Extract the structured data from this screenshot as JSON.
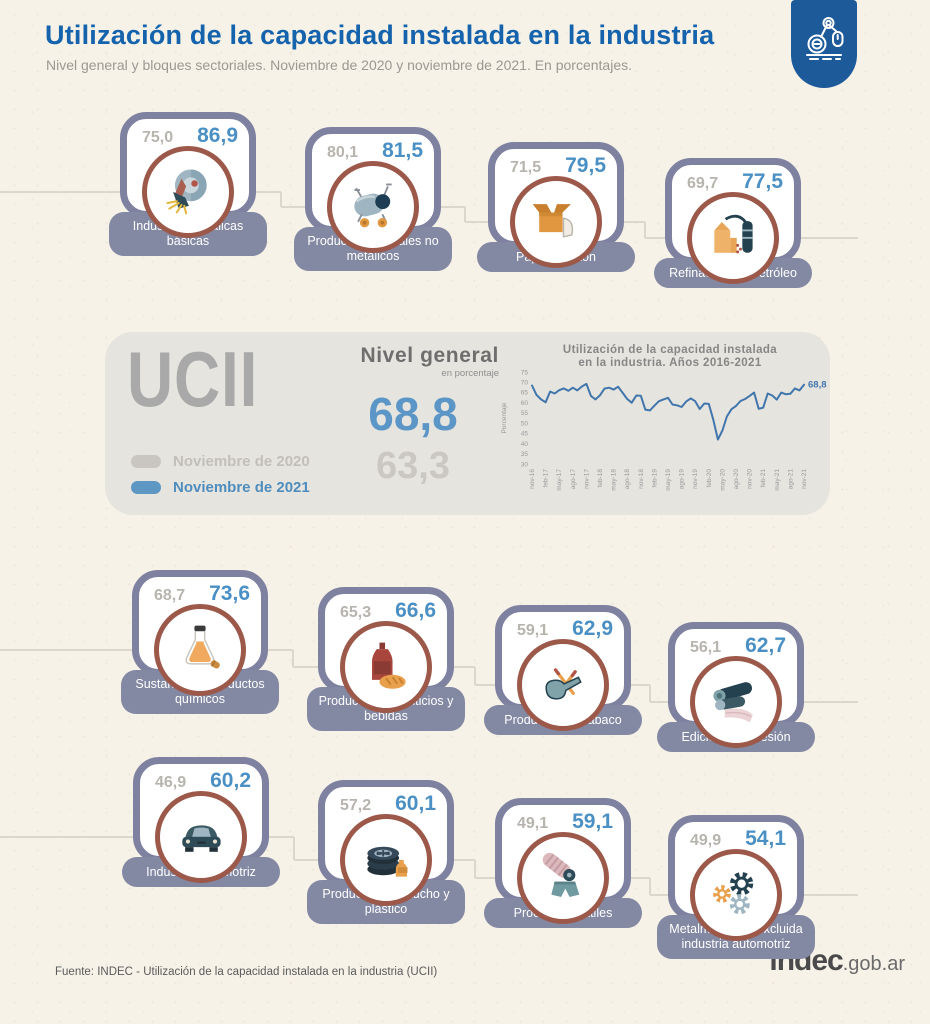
{
  "header": {
    "title": "Utilización de la capacidad instalada en la industria",
    "subtitle": "Nivel general y bloques sectoriales. Noviembre de 2020 y noviembre de 2021. En porcentajes.",
    "logo_icon": "robot-arm-icon"
  },
  "summary": {
    "acronym": "UCII",
    "panel_title": "Nivel general",
    "panel_unit": "en porcentaje",
    "value_2021": "68,8",
    "value_2020": "63,3",
    "legend": [
      {
        "label": "Noviembre de 2020",
        "color": "#c9c6c1"
      },
      {
        "label": "Noviembre de 2021",
        "color": "#5e97c3"
      }
    ]
  },
  "chart_data": {
    "type": "line",
    "title_lines": [
      "Utilización de la capacidad instalada",
      "en la industria. Años 2016-2021"
    ],
    "ylabel": "Porcentaje",
    "ylim": [
      30,
      75
    ],
    "ytick_step": 5,
    "tick_every": 3,
    "grid": false,
    "legend_position": "none",
    "line_color": "#4176ad",
    "annotation": "68,8",
    "x": [
      "nov-16",
      "dic-16",
      "ene-17",
      "feb-17",
      "mar-17",
      "abr-17",
      "may-17",
      "jun-17",
      "jul-17",
      "ago-17",
      "sep-17",
      "oct-17",
      "nov-17",
      "dic-17",
      "ene-18",
      "feb-18",
      "mar-18",
      "abr-18",
      "may-18",
      "jun-18",
      "jul-18",
      "ago-18",
      "sep-18",
      "oct-18",
      "nov-18",
      "dic-18",
      "ene-19",
      "feb-19",
      "mar-19",
      "abr-19",
      "may-19",
      "jun-19",
      "jul-19",
      "ago-19",
      "sep-19",
      "oct-19",
      "nov-19",
      "dic-19",
      "ene-20",
      "feb-20",
      "mar-20",
      "abr-20",
      "may-20",
      "jun-20",
      "jul-20",
      "ago-20",
      "sep-20",
      "oct-20",
      "nov-20",
      "dic-20",
      "ene-21",
      "feb-21",
      "mar-21",
      "abr-21",
      "may-21",
      "jun-21",
      "jul-21",
      "ago-21",
      "sep-21",
      "oct-21",
      "nov-21"
    ],
    "values": [
      68.4,
      63.8,
      61.6,
      60.2,
      65.4,
      64.5,
      66.1,
      67.0,
      65.8,
      67.3,
      66.0,
      67.9,
      69.2,
      63.3,
      61.6,
      63.6,
      66.9,
      67.3,
      66.4,
      67.8,
      64.8,
      61.8,
      60.0,
      63.5,
      63.4,
      56.6,
      56.2,
      58.5,
      60.7,
      61.6,
      62.4,
      59.1,
      58.7,
      57.9,
      60.5,
      62.1,
      60.7,
      56.9,
      59.6,
      59.4,
      51.6,
      42.0,
      46.4,
      53.3,
      56.8,
      58.4,
      60.8,
      61.8,
      63.3,
      64.9,
      57.0,
      57.6,
      64.5,
      63.5,
      61.5,
      64.9,
      64.1,
      64.4,
      67.0,
      66.0,
      68.8
    ]
  },
  "sectors": [
    {
      "name": "Industrias metálicas básicas",
      "value_2020": "75,0",
      "value_2021": "86,9",
      "icon": "grinder-icon"
    },
    {
      "name": "Productos minerales no metálicos",
      "value_2020": "80,1",
      "value_2021": "81,5",
      "icon": "cement-mixer-icon"
    },
    {
      "name": "Papel y cartón",
      "value_2020": "71,5",
      "value_2021": "79,5",
      "icon": "cardboard-box-icon"
    },
    {
      "name": "Refinación del petróleo",
      "value_2020": "69,7",
      "value_2021": "77,5",
      "icon": "oil-refinery-icon"
    },
    {
      "name": "Sustancias y productos químicos",
      "value_2020": "68,7",
      "value_2021": "73,6",
      "icon": "chemical-flask-icon"
    },
    {
      "name": "Productos alimenticios y bebidas",
      "value_2020": "65,3",
      "value_2021": "66,6",
      "icon": "food-beverage-icon"
    },
    {
      "name": "Productos del tabaco",
      "value_2020": "59,1",
      "value_2021": "62,9",
      "icon": "tobacco-pipe-icon"
    },
    {
      "name": "Edición e impresión",
      "value_2020": "56,1",
      "value_2021": "62,7",
      "icon": "printing-roll-icon"
    },
    {
      "name": "Industria automotriz",
      "value_2020": "46,9",
      "value_2021": "60,2",
      "icon": "car-icon"
    },
    {
      "name": "Productos de caucho y plástico",
      "value_2020": "57,2",
      "value_2021": "60,1",
      "icon": "tire-icon"
    },
    {
      "name": "Productos textiles",
      "value_2020": "49,1",
      "value_2021": "59,1",
      "icon": "textile-icon"
    },
    {
      "name": "Metalmecánica excluida industria automotriz",
      "value_2020": "49,9",
      "value_2021": "54,1",
      "icon": "gears-icon"
    }
  ],
  "footer": {
    "source": "Fuente: INDEC - Utilización de la capacidad instalada en la industria (UCII)",
    "site_bold": "indec",
    "site_rest": ".gob.ar"
  },
  "colors": {
    "title_blue": "#1563ac",
    "value_blue": "#4b90c4",
    "value_gray": "#b7b4ae",
    "card_border": "#7e82a0",
    "label_pill": "#8388a3",
    "circle_ring": "#9c594a",
    "band_bg": "#e6e4df",
    "page_bg": "#f6f2e8",
    "logo_blue": "#1d5a99",
    "chart_line": "#4176ad"
  }
}
